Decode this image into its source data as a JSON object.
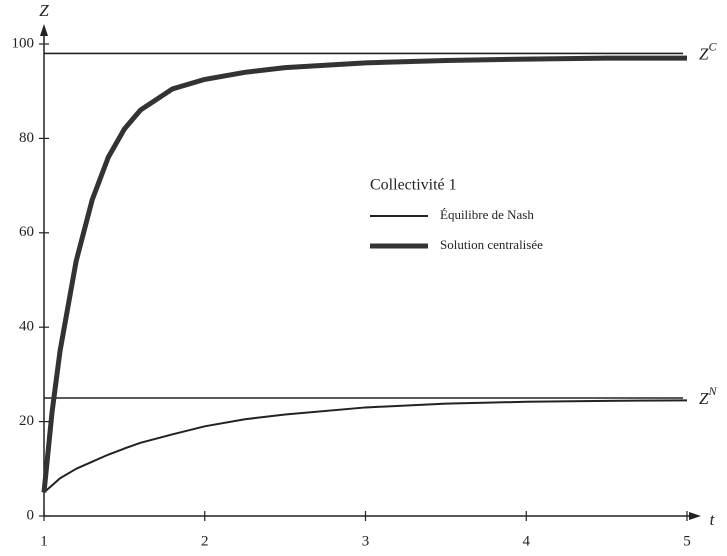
{
  "chart_data": {
    "type": "line",
    "y_label": "Z",
    "x_label": "t",
    "x": [
      1,
      1.05,
      1.1,
      1.2,
      1.3,
      1.4,
      1.5,
      1.6,
      1.8,
      2,
      2.25,
      2.5,
      3,
      3.5,
      4,
      4.5,
      5
    ],
    "series": [
      {
        "name": "Équilibre de Nash",
        "color": "#222222",
        "width": 2,
        "values": [
          5,
          6.5,
          8,
          10,
          11.5,
          13,
          14.3,
          15.5,
          17.3,
          19,
          20.5,
          21.5,
          23,
          23.8,
          24.2,
          24.4,
          24.5
        ]
      },
      {
        "name": "Solution centralisée",
        "color": "#333333",
        "width": 5,
        "values": [
          5,
          22,
          35,
          54,
          67,
          76,
          82,
          86,
          90.5,
          92.5,
          94,
          95,
          96,
          96.5,
          96.8,
          97,
          97
        ]
      }
    ],
    "legend_title": "Collectivité 1",
    "hlines": [
      {
        "value": 98,
        "label": "Z",
        "superscript": "C"
      },
      {
        "value": 25,
        "label": "Z",
        "superscript": "N"
      }
    ],
    "xlim": [
      1,
      5
    ],
    "xticks": [
      1,
      2,
      3,
      4,
      5
    ],
    "ylim": [
      0,
      100
    ],
    "yticks": [
      0,
      20,
      40,
      60,
      80,
      100
    ]
  }
}
